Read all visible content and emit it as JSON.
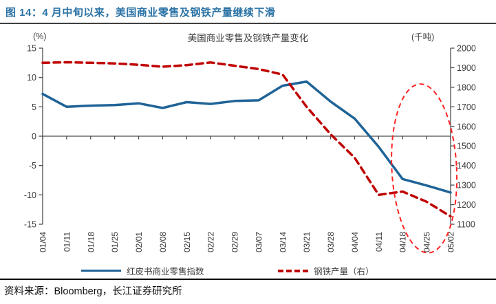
{
  "report": {
    "figure_title": "图 14：4 月中旬以来，美国商业零售及钢铁产量继续下滑",
    "source_line": "资料来源：Bloomberg，长江证券研究所"
  },
  "colors": {
    "title_blue": "#2A72A5",
    "series_blue": "#1F6397",
    "series_red": "#C00000",
    "annotation_red": "#FF2222",
    "axis_line": "#4D4D4D",
    "axis_text": "#3d3d3d"
  },
  "chart_data": {
    "type": "line",
    "title": "美国商业零售及钢铁产量变化",
    "left_axis_unit": "(%)",
    "right_axis_unit": "(千吨)",
    "categories": [
      "01/04",
      "01/11",
      "01/18",
      "01/25",
      "02/01",
      "02/08",
      "02/15",
      "02/22",
      "02/29",
      "03/07",
      "03/14",
      "03/21",
      "03/28",
      "04/04",
      "04/11",
      "04/18",
      "04/25",
      "05/02"
    ],
    "left_axis": {
      "min": -15,
      "max": 15,
      "step": 5,
      "ticks": [
        15,
        10,
        5,
        0,
        -5,
        -10,
        -15
      ]
    },
    "right_axis": {
      "min": 1100,
      "max": 2000,
      "step": 100,
      "ticks": [
        2000,
        1900,
        1800,
        1700,
        1600,
        1500,
        1400,
        1300,
        1200,
        1100
      ]
    },
    "series": [
      {
        "name": "红皮书商业零售指数",
        "axis": "left",
        "line": "solid",
        "color": "#1F6397",
        "values": [
          7.2,
          5.0,
          5.2,
          5.3,
          5.6,
          4.8,
          5.8,
          5.5,
          6.0,
          6.1,
          8.6,
          9.3,
          5.9,
          3.0,
          -1.8,
          -7.3,
          -8.4,
          -9.6
        ]
      },
      {
        "name": "钢铁产量（右）",
        "axis": "right",
        "line": "dashed",
        "color": "#C00000",
        "values": [
          1925,
          1928,
          1925,
          1922,
          1915,
          1905,
          1913,
          1927,
          1910,
          1893,
          1865,
          1700,
          1560,
          1440,
          1250,
          1267,
          1215,
          1140
        ]
      }
    ],
    "annotation": {
      "type": "ellipse",
      "color": "#FF2222",
      "center_category_index": 15.9,
      "center_left_value": -5.5,
      "radius_categories": 1.35,
      "radius_left_units": 14.4,
      "rotation_deg": -3
    },
    "legend_position": "bottom"
  }
}
